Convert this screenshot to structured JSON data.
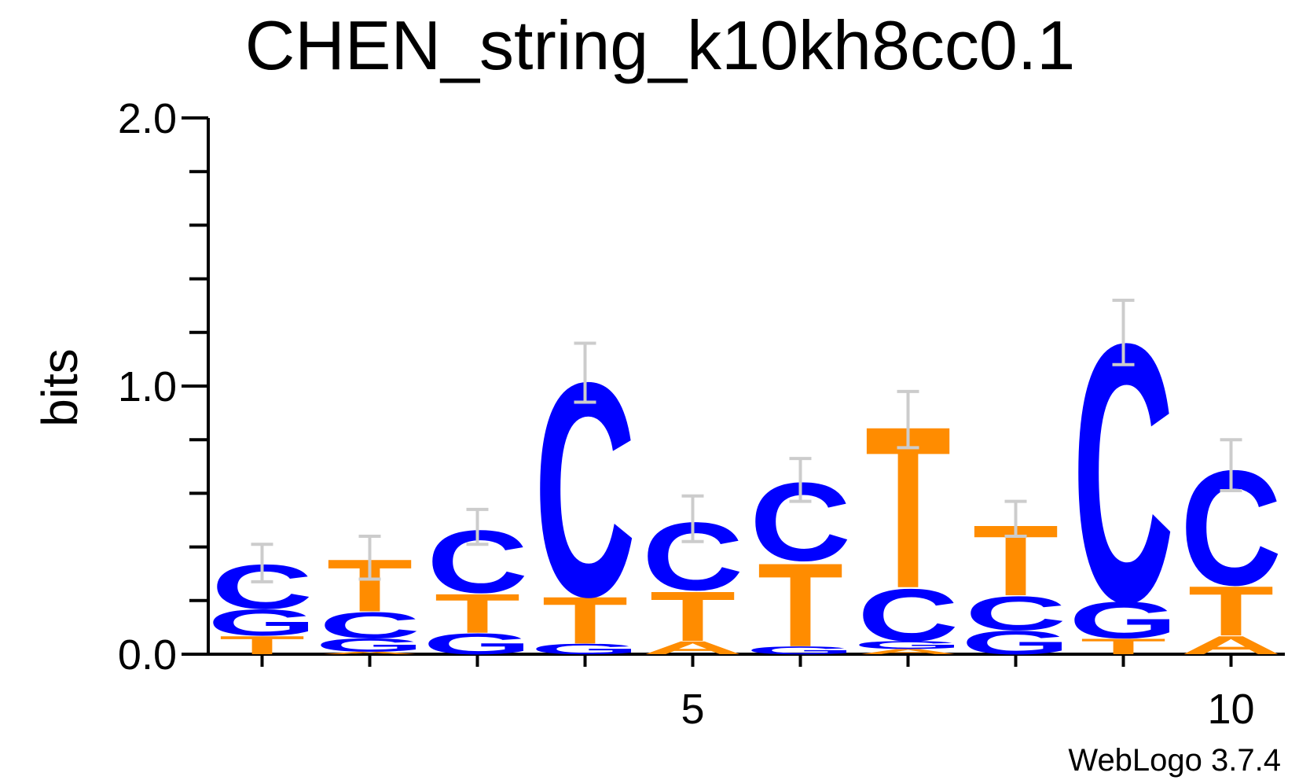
{
  "chart_data": {
    "type": "sequence-logo",
    "title": "CHEN_string_k10kh8cc0.1",
    "ylabel": "bits",
    "xlabel": "",
    "ylim": [
      0,
      2.0
    ],
    "xlim": [
      0.5,
      10.5
    ],
    "y_ticks": [
      "0.0",
      "1.0",
      "2.0"
    ],
    "x_ticks": [
      "5",
      "10"
    ],
    "footer": "WebLogo 3.7.4",
    "colors": {
      "A": "#ff8c00",
      "C": "#0000ff",
      "G": "#0000ff",
      "T": "#ff8c00",
      "errorbar": "#cccccc",
      "axis": "#000000"
    },
    "positions": [
      {
        "pos": 1,
        "stack": [
          {
            "letter": "T",
            "bits": 0.07
          },
          {
            "letter": "G",
            "bits": 0.1
          },
          {
            "letter": "C",
            "bits": 0.17
          }
        ],
        "error": [
          0.27,
          0.41
        ]
      },
      {
        "pos": 2,
        "stack": [
          {
            "letter": "A",
            "bits": 0.01
          },
          {
            "letter": "G",
            "bits": 0.05
          },
          {
            "letter": "C",
            "bits": 0.1
          },
          {
            "letter": "T",
            "bits": 0.2
          }
        ],
        "error": [
          0.28,
          0.44
        ]
      },
      {
        "pos": 3,
        "stack": [
          {
            "letter": "G",
            "bits": 0.08
          },
          {
            "letter": "T",
            "bits": 0.15
          },
          {
            "letter": "C",
            "bits": 0.24
          }
        ],
        "error": [
          0.41,
          0.54
        ]
      },
      {
        "pos": 4,
        "stack": [
          {
            "letter": "G",
            "bits": 0.04
          },
          {
            "letter": "T",
            "bits": 0.18
          },
          {
            "letter": "C",
            "bits": 0.82
          }
        ],
        "error": [
          0.94,
          1.16
        ]
      },
      {
        "pos": 5,
        "stack": [
          {
            "letter": "A",
            "bits": 0.05
          },
          {
            "letter": "T",
            "bits": 0.19
          },
          {
            "letter": "C",
            "bits": 0.26
          }
        ],
        "error": [
          0.42,
          0.59
        ]
      },
      {
        "pos": 6,
        "stack": [
          {
            "letter": "G",
            "bits": 0.03
          },
          {
            "letter": "T",
            "bits": 0.32
          },
          {
            "letter": "C",
            "bits": 0.3
          }
        ],
        "error": [
          0.57,
          0.73
        ]
      },
      {
        "pos": 7,
        "stack": [
          {
            "letter": "A",
            "bits": 0.02
          },
          {
            "letter": "G",
            "bits": 0.03
          },
          {
            "letter": "C",
            "bits": 0.2
          },
          {
            "letter": "T",
            "bits": 0.62
          }
        ],
        "error": [
          0.77,
          0.98
        ]
      },
      {
        "pos": 8,
        "stack": [
          {
            "letter": "G",
            "bits": 0.09
          },
          {
            "letter": "C",
            "bits": 0.13
          },
          {
            "letter": "T",
            "bits": 0.27
          }
        ],
        "error": [
          0.44,
          0.57
        ]
      },
      {
        "pos": 9,
        "stack": [
          {
            "letter": "T",
            "bits": 0.06
          },
          {
            "letter": "G",
            "bits": 0.14
          },
          {
            "letter": "C",
            "bits": 0.99
          }
        ],
        "error": [
          1.08,
          1.32
        ]
      },
      {
        "pos": 10,
        "stack": [
          {
            "letter": "A",
            "bits": 0.07
          },
          {
            "letter": "T",
            "bits": 0.19
          },
          {
            "letter": "C",
            "bits": 0.44
          }
        ],
        "error": [
          0.61,
          0.8
        ]
      }
    ]
  }
}
